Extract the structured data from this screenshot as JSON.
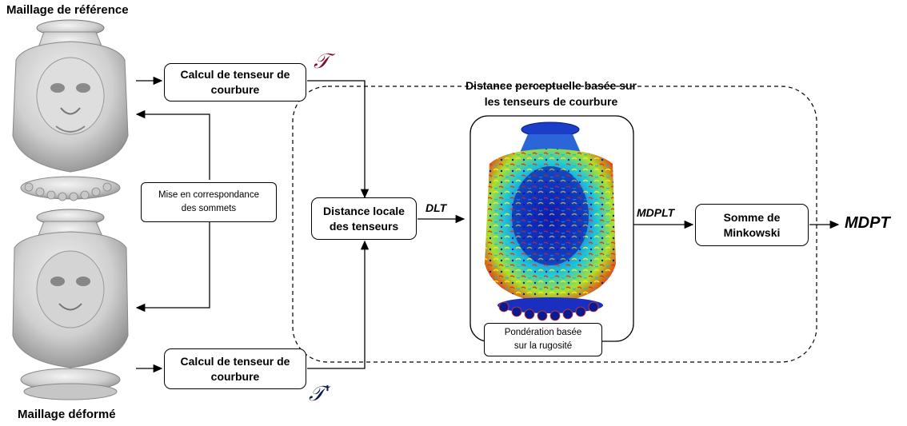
{
  "labels": {
    "reference_mesh": "Maillage de référence",
    "deformed_mesh": "Maillage déformé",
    "perceptual_region_line1": "Distance perceptuelle basée sur",
    "perceptual_region_line2": "les tenseurs de courbure"
  },
  "boxes": {
    "curvature_top": [
      "Calcul de tenseur de",
      "courbure"
    ],
    "curvature_bottom": [
      "Calcul de tenseur de",
      "courbure"
    ],
    "matching": [
      "Mise en correspondance",
      "des sommets"
    ],
    "local_distance": [
      "Distance locale",
      "des tenseurs"
    ],
    "roughness": [
      "Pondération basée",
      "sur la rugosité"
    ],
    "minkowski": [
      "Somme de",
      "Minkowski"
    ]
  },
  "flow_labels": {
    "tensor_ref": "𝒯",
    "tensor_def": "𝒯'",
    "dlt": "DLT",
    "mdplt": "MDPLT",
    "mdpt": "MDPT"
  },
  "icons": {
    "reference": "lion-vase-icon",
    "deformed": "lion-vase-icon",
    "colormap": "lion-vase-heatmap-icon"
  },
  "colors": {
    "tensor_ref": "#7a0f2a",
    "tensor_def": "#0c1a4d",
    "heatmap_low": "#0a1aa0",
    "heatmap_high": "#e02a10"
  }
}
